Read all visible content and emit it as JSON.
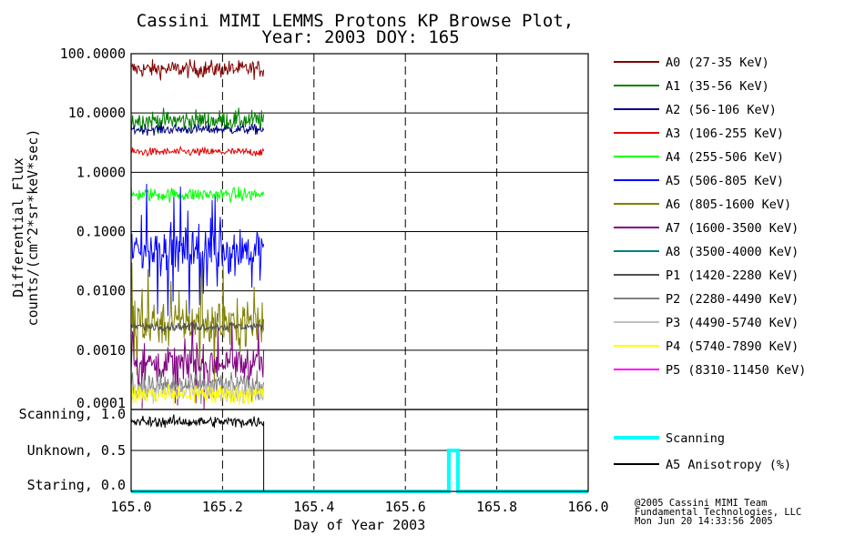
{
  "chart_data": {
    "title_line1": "Cassini MIMI LEMMS Protons KP Browse Plot,",
    "title_line2": "Year: 2003 DOY: 165",
    "xlabel": "Day of Year 2003",
    "ylabel_line1": "Differential Flux",
    "ylabel_line2": "counts/(cm^2*sr*keV*sec)",
    "x_ticks": [
      {
        "value": 165.0,
        "label": "165.0"
      },
      {
        "value": 165.2,
        "label": "165.2"
      },
      {
        "value": 165.4,
        "label": "165.4"
      },
      {
        "value": 165.6,
        "label": "165.6"
      },
      {
        "value": 165.8,
        "label": "165.8"
      },
      {
        "value": 166.0,
        "label": "166.0"
      }
    ],
    "xlim": [
      165.0,
      166.0
    ],
    "panels": [
      {
        "id": "flux",
        "type": "line",
        "y_scale": "log",
        "ylim": [
          0.0001,
          100
        ],
        "y_ticks": [
          {
            "value": 100,
            "label": "100.0000"
          },
          {
            "value": 10,
            "label": "10.0000"
          },
          {
            "value": 1,
            "label": "1.0000"
          },
          {
            "value": 0.1,
            "label": "0.1000"
          },
          {
            "value": 0.01,
            "label": "0.0100"
          },
          {
            "value": 0.001,
            "label": "0.0010"
          },
          {
            "value": 0.0001,
            "label": "0.0001"
          }
        ],
        "data_x_range": [
          165.0,
          165.29
        ],
        "series": [
          {
            "name": "A0 (27-35 KeV)",
            "color": "#800000",
            "typical_value": 55,
            "spread": 0.25,
            "draw": true
          },
          {
            "name": "A1 (35-56 KeV)",
            "color": "#008000",
            "typical_value": 7.5,
            "spread": 0.3,
            "draw": true
          },
          {
            "name": "A2 (56-106 KeV)",
            "color": "#000080",
            "typical_value": 5.3,
            "spread": 0.15,
            "draw": true
          },
          {
            "name": "A3 (106-255 KeV)",
            "color": "#e00000",
            "typical_value": 2.2,
            "spread": 0.12,
            "draw": true
          },
          {
            "name": "A4 (255-506 KeV)",
            "color": "#00ff00",
            "typical_value": 0.42,
            "spread": 0.2,
            "draw": true
          },
          {
            "name": "A5 (506-805 KeV)",
            "color": "#0000ff",
            "typical_value": 0.05,
            "spread": 0.7,
            "draw": true
          },
          {
            "name": "A6 (805-1600 KeV)",
            "color": "#808000",
            "typical_value": 0.003,
            "spread": 0.7,
            "draw": true
          },
          {
            "name": "A7 (1600-3500 KeV)",
            "color": "#800080",
            "typical_value": 0.0006,
            "spread": 0.5,
            "draw": true
          },
          {
            "name": "A8 (3500-4000 KeV)",
            "color": "#008080",
            "typical_value": 0.0002,
            "spread": 0.2,
            "draw": false
          },
          {
            "name": "P1 (1420-2280 KeV)",
            "color": "#505050",
            "typical_value": 0.0025,
            "spread": 0.12,
            "draw": true
          },
          {
            "name": "P2 (2280-4490 KeV)",
            "color": "#808080",
            "typical_value": 0.00025,
            "spread": 0.4,
            "draw": true
          },
          {
            "name": "P3 (4490-5740 KeV)",
            "color": "#c0c0c0",
            "typical_value": 0.0002,
            "spread": 0.3,
            "draw": true
          },
          {
            "name": "P4 (5740-7890 KeV)",
            "color": "#ffff00",
            "typical_value": 0.00018,
            "spread": 0.3,
            "draw": true
          },
          {
            "name": "P5 (8310-11450 KeV)",
            "color": "#ff00ff",
            "typical_value": 0.0001,
            "spread": 0.1,
            "draw": false
          }
        ]
      },
      {
        "id": "status",
        "type": "line",
        "ylim": [
          0.0,
          1.0
        ],
        "y_ticks": [
          {
            "value": 1.0,
            "label": "Scanning, 1.0"
          },
          {
            "value": 0.5,
            "label": "Unknown, 0.5"
          },
          {
            "value": 0.0,
            "label": "Staring, 0.0"
          }
        ],
        "series": [
          {
            "name": "Scanning",
            "color": "#00ffff",
            "x": [
              165.0,
              165.695,
              165.695,
              165.715,
              165.715,
              166.0
            ],
            "y": [
              0.0,
              0.0,
              0.5,
              0.5,
              0.0,
              0.0
            ]
          },
          {
            "name": "A5 Anisotropy (%)",
            "color": "#000000",
            "typical_value": 0.85,
            "spread": 0.07,
            "data_x_range": [
              165.0,
              165.29
            ],
            "drop_at": 165.29
          }
        ]
      }
    ],
    "grid": true,
    "legend_position": "right"
  },
  "credits": {
    "line1": "@2005 Cassini MIMI Team",
    "line2": "Fundamental Technologies, LLC",
    "line3": "Mon Jun 20 14:33:56 2005"
  }
}
